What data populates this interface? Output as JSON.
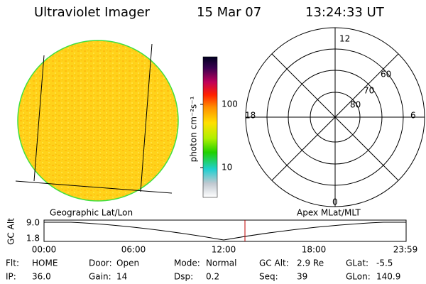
{
  "header": {
    "title": "Ultraviolet Imager",
    "date": "15 Mar 07",
    "time": "13:24:33 UT"
  },
  "colorbar": {
    "label": "photon cm⁻²s⁻¹",
    "ticks": [
      "100",
      "10"
    ]
  },
  "polar": {
    "labels": {
      "top": "12",
      "left": "18",
      "right": "6",
      "bottom": "0"
    },
    "rings": [
      "60",
      "70",
      "80"
    ]
  },
  "altitude": {
    "left_title": "Geographic Lat/Lon",
    "right_title": "Apex MLat/MLT",
    "axis_label": "GC Alt",
    "yticks": [
      "9.0",
      "1.8"
    ],
    "xticks": [
      "00:00",
      "06:00",
      "12:00",
      "18:00",
      "23:59"
    ]
  },
  "info": [
    [
      {
        "label": "Flt:",
        "value": "HOME"
      },
      {
        "label": "Door:",
        "value": "Open"
      },
      {
        "label": "Mode:",
        "value": "Normal"
      },
      {
        "label": "GC Alt:",
        "value": "2.9 Re"
      },
      {
        "label": "GLat:",
        "value": "-5.5"
      }
    ],
    [
      {
        "label": "IP:",
        "value": "36.0"
      },
      {
        "label": "Gain:",
        "value": "14"
      },
      {
        "label": "Dsp:",
        "value": "0.2"
      },
      {
        "label": "Seq:",
        "value": "39"
      },
      {
        "label": "GLon:",
        "value": "140.9"
      }
    ]
  ]
}
